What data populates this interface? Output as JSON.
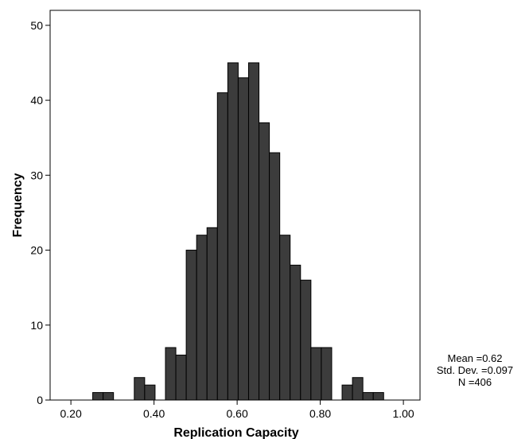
{
  "chart_data": {
    "type": "bar",
    "subtype": "histogram",
    "title": "",
    "xlabel": "Replication Capacity",
    "ylabel": "Frequency",
    "xlim": [
      0.15,
      1.04
    ],
    "ylim": [
      0,
      52
    ],
    "x_ticks": [
      0.2,
      0.4,
      0.6,
      0.8,
      1.0
    ],
    "x_tick_labels": [
      "0.20",
      "0.40",
      "0.60",
      "0.80",
      "1.00"
    ],
    "y_ticks": [
      0,
      10,
      20,
      30,
      40,
      50
    ],
    "y_tick_labels": [
      "0",
      "10",
      "20",
      "30",
      "40",
      "50"
    ],
    "grid": false,
    "bar_color": "#3c3c3c",
    "bar_edge_color": "#000000",
    "bins": [
      {
        "x0": 0.2525,
        "x1": 0.2775,
        "count": 1
      },
      {
        "x0": 0.2775,
        "x1": 0.3025,
        "count": 1
      },
      {
        "x0": 0.3525,
        "x1": 0.3775,
        "count": 3
      },
      {
        "x0": 0.3775,
        "x1": 0.4025,
        "count": 2
      },
      {
        "x0": 0.4275,
        "x1": 0.4525,
        "count": 7
      },
      {
        "x0": 0.4525,
        "x1": 0.4775,
        "count": 6
      },
      {
        "x0": 0.4775,
        "x1": 0.5025,
        "count": 20
      },
      {
        "x0": 0.5025,
        "x1": 0.5275,
        "count": 22
      },
      {
        "x0": 0.5275,
        "x1": 0.5525,
        "count": 23
      },
      {
        "x0": 0.5525,
        "x1": 0.5775,
        "count": 41
      },
      {
        "x0": 0.5775,
        "x1": 0.6025,
        "count": 45
      },
      {
        "x0": 0.6025,
        "x1": 0.6275,
        "count": 43
      },
      {
        "x0": 0.6275,
        "x1": 0.6525,
        "count": 45
      },
      {
        "x0": 0.6525,
        "x1": 0.6775,
        "count": 37
      },
      {
        "x0": 0.6775,
        "x1": 0.7025,
        "count": 33
      },
      {
        "x0": 0.7025,
        "x1": 0.7275,
        "count": 22
      },
      {
        "x0": 0.7275,
        "x1": 0.7525,
        "count": 18
      },
      {
        "x0": 0.7525,
        "x1": 0.7775,
        "count": 16
      },
      {
        "x0": 0.7775,
        "x1": 0.8025,
        "count": 7
      },
      {
        "x0": 0.8025,
        "x1": 0.8275,
        "count": 7
      },
      {
        "x0": 0.8525,
        "x1": 0.8775,
        "count": 2
      },
      {
        "x0": 0.8775,
        "x1": 0.9025,
        "count": 3
      },
      {
        "x0": 0.9025,
        "x1": 0.9275,
        "count": 1
      },
      {
        "x0": 0.9275,
        "x1": 0.9525,
        "count": 1
      }
    ],
    "stats": {
      "mean": "Mean =0.62",
      "std_dev": "Std. Dev. =0.097",
      "n": "N =406"
    }
  }
}
